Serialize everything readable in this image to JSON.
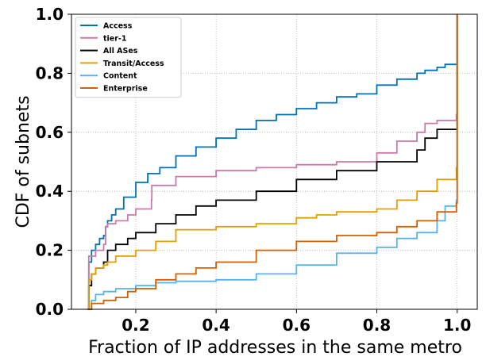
{
  "chart_data": {
    "type": "line",
    "step": true,
    "xlabel": "Fraction of IP addresses in the same metro",
    "ylabel": "CDF of subnets",
    "xlim": [
      0.04,
      1.05
    ],
    "ylim": [
      0,
      1
    ],
    "xticks": [
      0.2,
      0.4,
      0.6,
      0.8,
      1.0
    ],
    "xtick_labels": [
      "0.2",
      "0.4",
      "0.6",
      "0.8",
      "1.0"
    ],
    "yticks": [
      0.0,
      0.2,
      0.4,
      0.6,
      0.8,
      1.0
    ],
    "ytick_labels": [
      "0.0",
      "0.2",
      "0.4",
      "0.6",
      "0.8",
      "1.0"
    ],
    "grid": true,
    "grid_style": "dotted",
    "legend_position": "top-left",
    "series": [
      {
        "name": "Access",
        "color": "#0072B2",
        "x": [
          0.08,
          0.083,
          0.09,
          0.1,
          0.11,
          0.12,
          0.125,
          0.13,
          0.14,
          0.15,
          0.17,
          0.2,
          0.23,
          0.26,
          0.3,
          0.35,
          0.4,
          0.45,
          0.5,
          0.55,
          0.6,
          0.65,
          0.7,
          0.75,
          0.8,
          0.85,
          0.9,
          0.92,
          0.95,
          0.97,
          0.998,
          1.0
        ],
        "y": [
          0.0,
          0.16,
          0.2,
          0.22,
          0.24,
          0.25,
          0.28,
          0.3,
          0.32,
          0.34,
          0.38,
          0.43,
          0.46,
          0.48,
          0.52,
          0.55,
          0.58,
          0.61,
          0.64,
          0.66,
          0.68,
          0.7,
          0.72,
          0.73,
          0.76,
          0.78,
          0.8,
          0.81,
          0.82,
          0.83,
          0.83,
          1.0
        ]
      },
      {
        "name": "tier-1",
        "color": "#CC79A7",
        "x": [
          0.08,
          0.083,
          0.1,
          0.12,
          0.125,
          0.13,
          0.15,
          0.18,
          0.2,
          0.239,
          0.24,
          0.3,
          0.4,
          0.5,
          0.6,
          0.7,
          0.8,
          0.85,
          0.9,
          0.92,
          0.95,
          0.998,
          1.0
        ],
        "y": [
          0.0,
          0.18,
          0.2,
          0.22,
          0.28,
          0.29,
          0.3,
          0.32,
          0.34,
          0.37,
          0.42,
          0.45,
          0.47,
          0.48,
          0.49,
          0.5,
          0.53,
          0.57,
          0.6,
          0.63,
          0.64,
          0.66,
          1.0
        ]
      },
      {
        "name": "All ASes",
        "color": "#000000",
        "x": [
          0.08,
          0.083,
          0.09,
          0.1,
          0.12,
          0.13,
          0.15,
          0.18,
          0.2,
          0.25,
          0.3,
          0.35,
          0.4,
          0.5,
          0.6,
          0.7,
          0.8,
          0.9,
          0.92,
          0.95,
          0.998,
          1.0
        ],
        "y": [
          0.0,
          0.08,
          0.12,
          0.14,
          0.16,
          0.2,
          0.22,
          0.24,
          0.26,
          0.29,
          0.32,
          0.35,
          0.37,
          0.4,
          0.44,
          0.47,
          0.5,
          0.54,
          0.58,
          0.61,
          0.61,
          1.0
        ]
      },
      {
        "name": "Transit/Access",
        "color": "#E69F00",
        "x": [
          0.08,
          0.083,
          0.09,
          0.1,
          0.12,
          0.13,
          0.15,
          0.2,
          0.25,
          0.3,
          0.4,
          0.5,
          0.6,
          0.65,
          0.7,
          0.8,
          0.85,
          0.9,
          0.95,
          0.998,
          1.0
        ],
        "y": [
          0.0,
          0.1,
          0.12,
          0.14,
          0.15,
          0.16,
          0.18,
          0.2,
          0.23,
          0.27,
          0.28,
          0.29,
          0.31,
          0.32,
          0.33,
          0.34,
          0.37,
          0.4,
          0.44,
          0.48,
          1.0
        ]
      },
      {
        "name": "Content",
        "color": "#56B4E9",
        "x": [
          0.08,
          0.09,
          0.1,
          0.12,
          0.15,
          0.2,
          0.25,
          0.3,
          0.4,
          0.5,
          0.6,
          0.7,
          0.8,
          0.85,
          0.9,
          0.95,
          0.97,
          0.998,
          1.0
        ],
        "y": [
          0.0,
          0.03,
          0.05,
          0.06,
          0.07,
          0.08,
          0.09,
          0.095,
          0.1,
          0.12,
          0.15,
          0.19,
          0.21,
          0.24,
          0.26,
          0.3,
          0.35,
          0.37,
          1.0
        ]
      },
      {
        "name": "Enterprise",
        "color": "#D55E00",
        "x": [
          0.08,
          0.09,
          0.12,
          0.15,
          0.18,
          0.2,
          0.25,
          0.3,
          0.35,
          0.4,
          0.5,
          0.6,
          0.7,
          0.8,
          0.85,
          0.9,
          0.95,
          0.998,
          1.0
        ],
        "y": [
          0.0,
          0.02,
          0.03,
          0.04,
          0.06,
          0.07,
          0.1,
          0.12,
          0.14,
          0.16,
          0.2,
          0.23,
          0.25,
          0.26,
          0.28,
          0.3,
          0.33,
          0.36,
          1.0
        ]
      }
    ]
  }
}
